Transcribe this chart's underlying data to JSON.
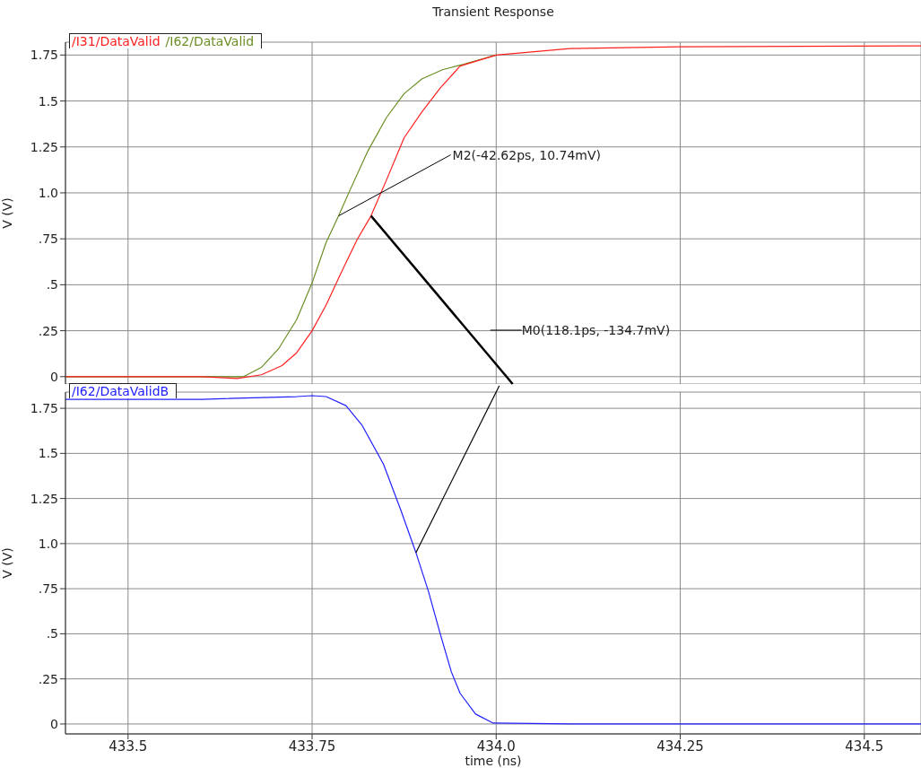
{
  "chart_data": [
    {
      "type": "line",
      "title": "Transient Response",
      "ylabel": "V (V)",
      "legend": "top left",
      "grid": true,
      "tick_labels": "y",
      "xlim": [
        433.415,
        434.577
      ],
      "xticks": [
        433.5,
        433.75,
        434,
        434.25,
        434.5
      ],
      "ylim": [
        -0.04,
        1.82
      ],
      "yticks": [
        0,
        {
          "value": 0.25,
          "label": ".25"
        },
        {
          "value": 0.5,
          "label": ".5"
        },
        {
          "value": 0.75,
          "label": ".75"
        },
        {
          "value": 1,
          "label": "1.0"
        },
        1.25,
        1.5,
        1.75
      ],
      "series": [
        {
          "name": "/I31/DataValid",
          "color": "#ff2020",
          "x": [
            433.415,
            433.6,
            433.648,
            433.681,
            433.709,
            433.729,
            433.75,
            433.769,
            433.79,
            433.811,
            433.83,
            433.851,
            433.875,
            433.899,
            433.924,
            433.951,
            434.0,
            434.1,
            434.25,
            434.577
          ],
          "values": [
            0,
            0,
            -0.01,
            0.01,
            0.06,
            0.13,
            0.25,
            0.39,
            0.57,
            0.745,
            0.875,
            1.07,
            1.3,
            1.44,
            1.57,
            1.69,
            1.75,
            1.785,
            1.795,
            1.8
          ]
        },
        {
          "name": "/I62/DataValid",
          "color": "#6b8e23",
          "x": [
            433.415,
            433.6,
            433.657,
            433.681,
            433.705,
            433.729,
            433.75,
            433.769,
            433.786,
            433.802,
            433.826,
            433.851,
            433.875,
            433.899,
            433.927,
            433.956,
            434.0
          ],
          "values": [
            0,
            0,
            0,
            0.05,
            0.155,
            0.31,
            0.51,
            0.73,
            0.875,
            1.02,
            1.23,
            1.41,
            1.54,
            1.62,
            1.67,
            1.7,
            1.75
          ]
        }
      ],
      "annotations": [
        {
          "text": "M2(-42.62ps, 10.74mV)",
          "x": 433.786,
          "y": 0.875
        },
        "M0(118.1ps, -134.7mV)"
      ]
    },
    {
      "type": "line",
      "xlabel": "time (ns)",
      "ylabel": "V (V)",
      "legend": "top left",
      "grid": true,
      "xlim": [
        433.415,
        434.577
      ],
      "xticks": [
        433.5,
        433.75,
        {
          "value": 434,
          "label": "434.0"
        },
        434.25,
        434.5
      ],
      "ylim": [
        -0.055,
        1.84
      ],
      "yticks": [
        0,
        {
          "value": 0.25,
          "label": ".25"
        },
        {
          "value": 0.5,
          "label": ".5"
        },
        {
          "value": 0.75,
          "label": ".75"
        },
        {
          "value": 1,
          "label": "1.0"
        },
        1.25,
        1.5,
        1.75
      ],
      "series": [
        {
          "name": "/I62/DataValidB",
          "color": "#2020ff",
          "x": [
            433.415,
            433.6,
            433.729,
            433.75,
            433.769,
            433.796,
            433.818,
            433.847,
            433.871,
            433.891,
            433.908,
            433.924,
            433.939,
            433.951,
            433.972,
            433.996,
            434.1,
            434.577
          ],
          "values": [
            1.8,
            1.8,
            1.815,
            1.82,
            1.815,
            1.765,
            1.655,
            1.44,
            1.18,
            0.95,
            0.735,
            0.5,
            0.29,
            0.17,
            0.055,
            0.005,
            0,
            0
          ]
        }
      ]
    }
  ]
}
